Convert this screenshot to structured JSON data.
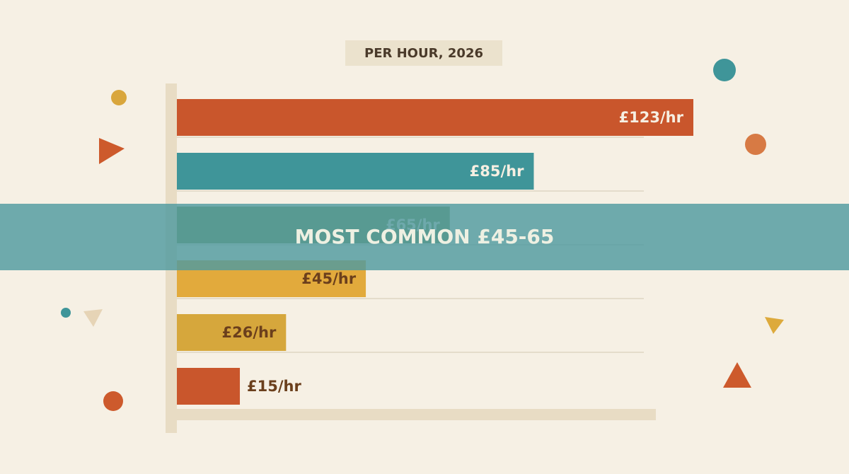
{
  "chart_data": {
    "type": "bar",
    "orientation": "horizontal",
    "title": "PER HOUR, 2026",
    "values": [
      123,
      85,
      65,
      45,
      26,
      15
    ],
    "value_labels": [
      "£123/hr",
      "£85/hr",
      "£65/hr",
      "£45/hr",
      "£26/hr",
      "£15/hr"
    ],
    "colors": [
      "#c9562c",
      "#3f9599",
      "#819c57",
      "#e2aa3c",
      "#d6a73c",
      "#c9562c"
    ],
    "label_colors": [
      "#f6efe2",
      "#f6efe2",
      "#f6efe2",
      "#6b3f1c",
      "#6b3f1c",
      "#f6efe2"
    ],
    "annotation": "MOST COMMON £45-65",
    "grid": true
  }
}
